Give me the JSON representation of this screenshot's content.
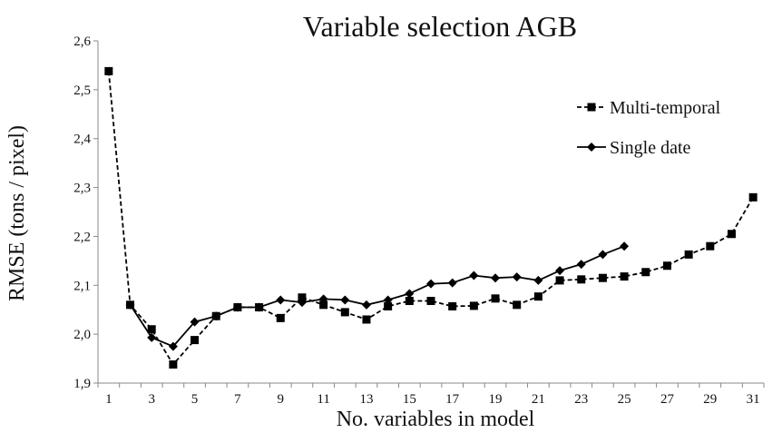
{
  "chart_data": {
    "type": "line",
    "title": "Variable selection AGB",
    "xlabel": "No. variables in model",
    "ylabel": "RMSE (tons / pixel)",
    "xlim": [
      0.5,
      31.5
    ],
    "ylim": [
      1.9,
      2.6
    ],
    "x_ticks": [
      "1",
      "3",
      "5",
      "7",
      "9",
      "11",
      "13",
      "15",
      "17",
      "19",
      "21",
      "23",
      "25",
      "27",
      "29",
      "31"
    ],
    "y_ticks": [
      "1,9",
      "2,0",
      "2,1",
      "2,2",
      "2,3",
      "2,4",
      "2,5",
      "2,6"
    ],
    "grid": false,
    "legend_position": "right",
    "series": [
      {
        "name": "Multi-temporal",
        "marker": "square",
        "line_style": "dashed",
        "color": "#000000",
        "x": [
          1,
          2,
          3,
          4,
          5,
          6,
          7,
          8,
          9,
          10,
          11,
          12,
          13,
          14,
          15,
          16,
          17,
          18,
          19,
          20,
          21,
          22,
          23,
          24,
          25,
          26,
          27,
          28,
          29,
          30,
          31
        ],
        "values": [
          2.538,
          2.06,
          2.01,
          1.938,
          1.988,
          2.037,
          2.055,
          2.055,
          2.033,
          2.075,
          2.06,
          2.045,
          2.03,
          2.057,
          2.068,
          2.068,
          2.057,
          2.058,
          2.073,
          2.06,
          2.077,
          2.11,
          2.112,
          2.115,
          2.118,
          2.127,
          2.14,
          2.163,
          2.18,
          2.205,
          2.28
        ]
      },
      {
        "name": "Single date",
        "marker": "diamond",
        "line_style": "solid",
        "color": "#000000",
        "x": [
          2,
          3,
          4,
          5,
          6,
          7,
          8,
          9,
          10,
          11,
          12,
          13,
          14,
          15,
          16,
          17,
          18,
          19,
          20,
          21,
          22,
          23,
          24,
          25
        ],
        "values": [
          2.06,
          1.993,
          1.975,
          2.025,
          2.037,
          2.055,
          2.055,
          2.07,
          2.065,
          2.072,
          2.07,
          2.06,
          2.07,
          2.083,
          2.103,
          2.105,
          2.12,
          2.115,
          2.117,
          2.11,
          2.13,
          2.143,
          2.163,
          2.18
        ]
      }
    ]
  }
}
